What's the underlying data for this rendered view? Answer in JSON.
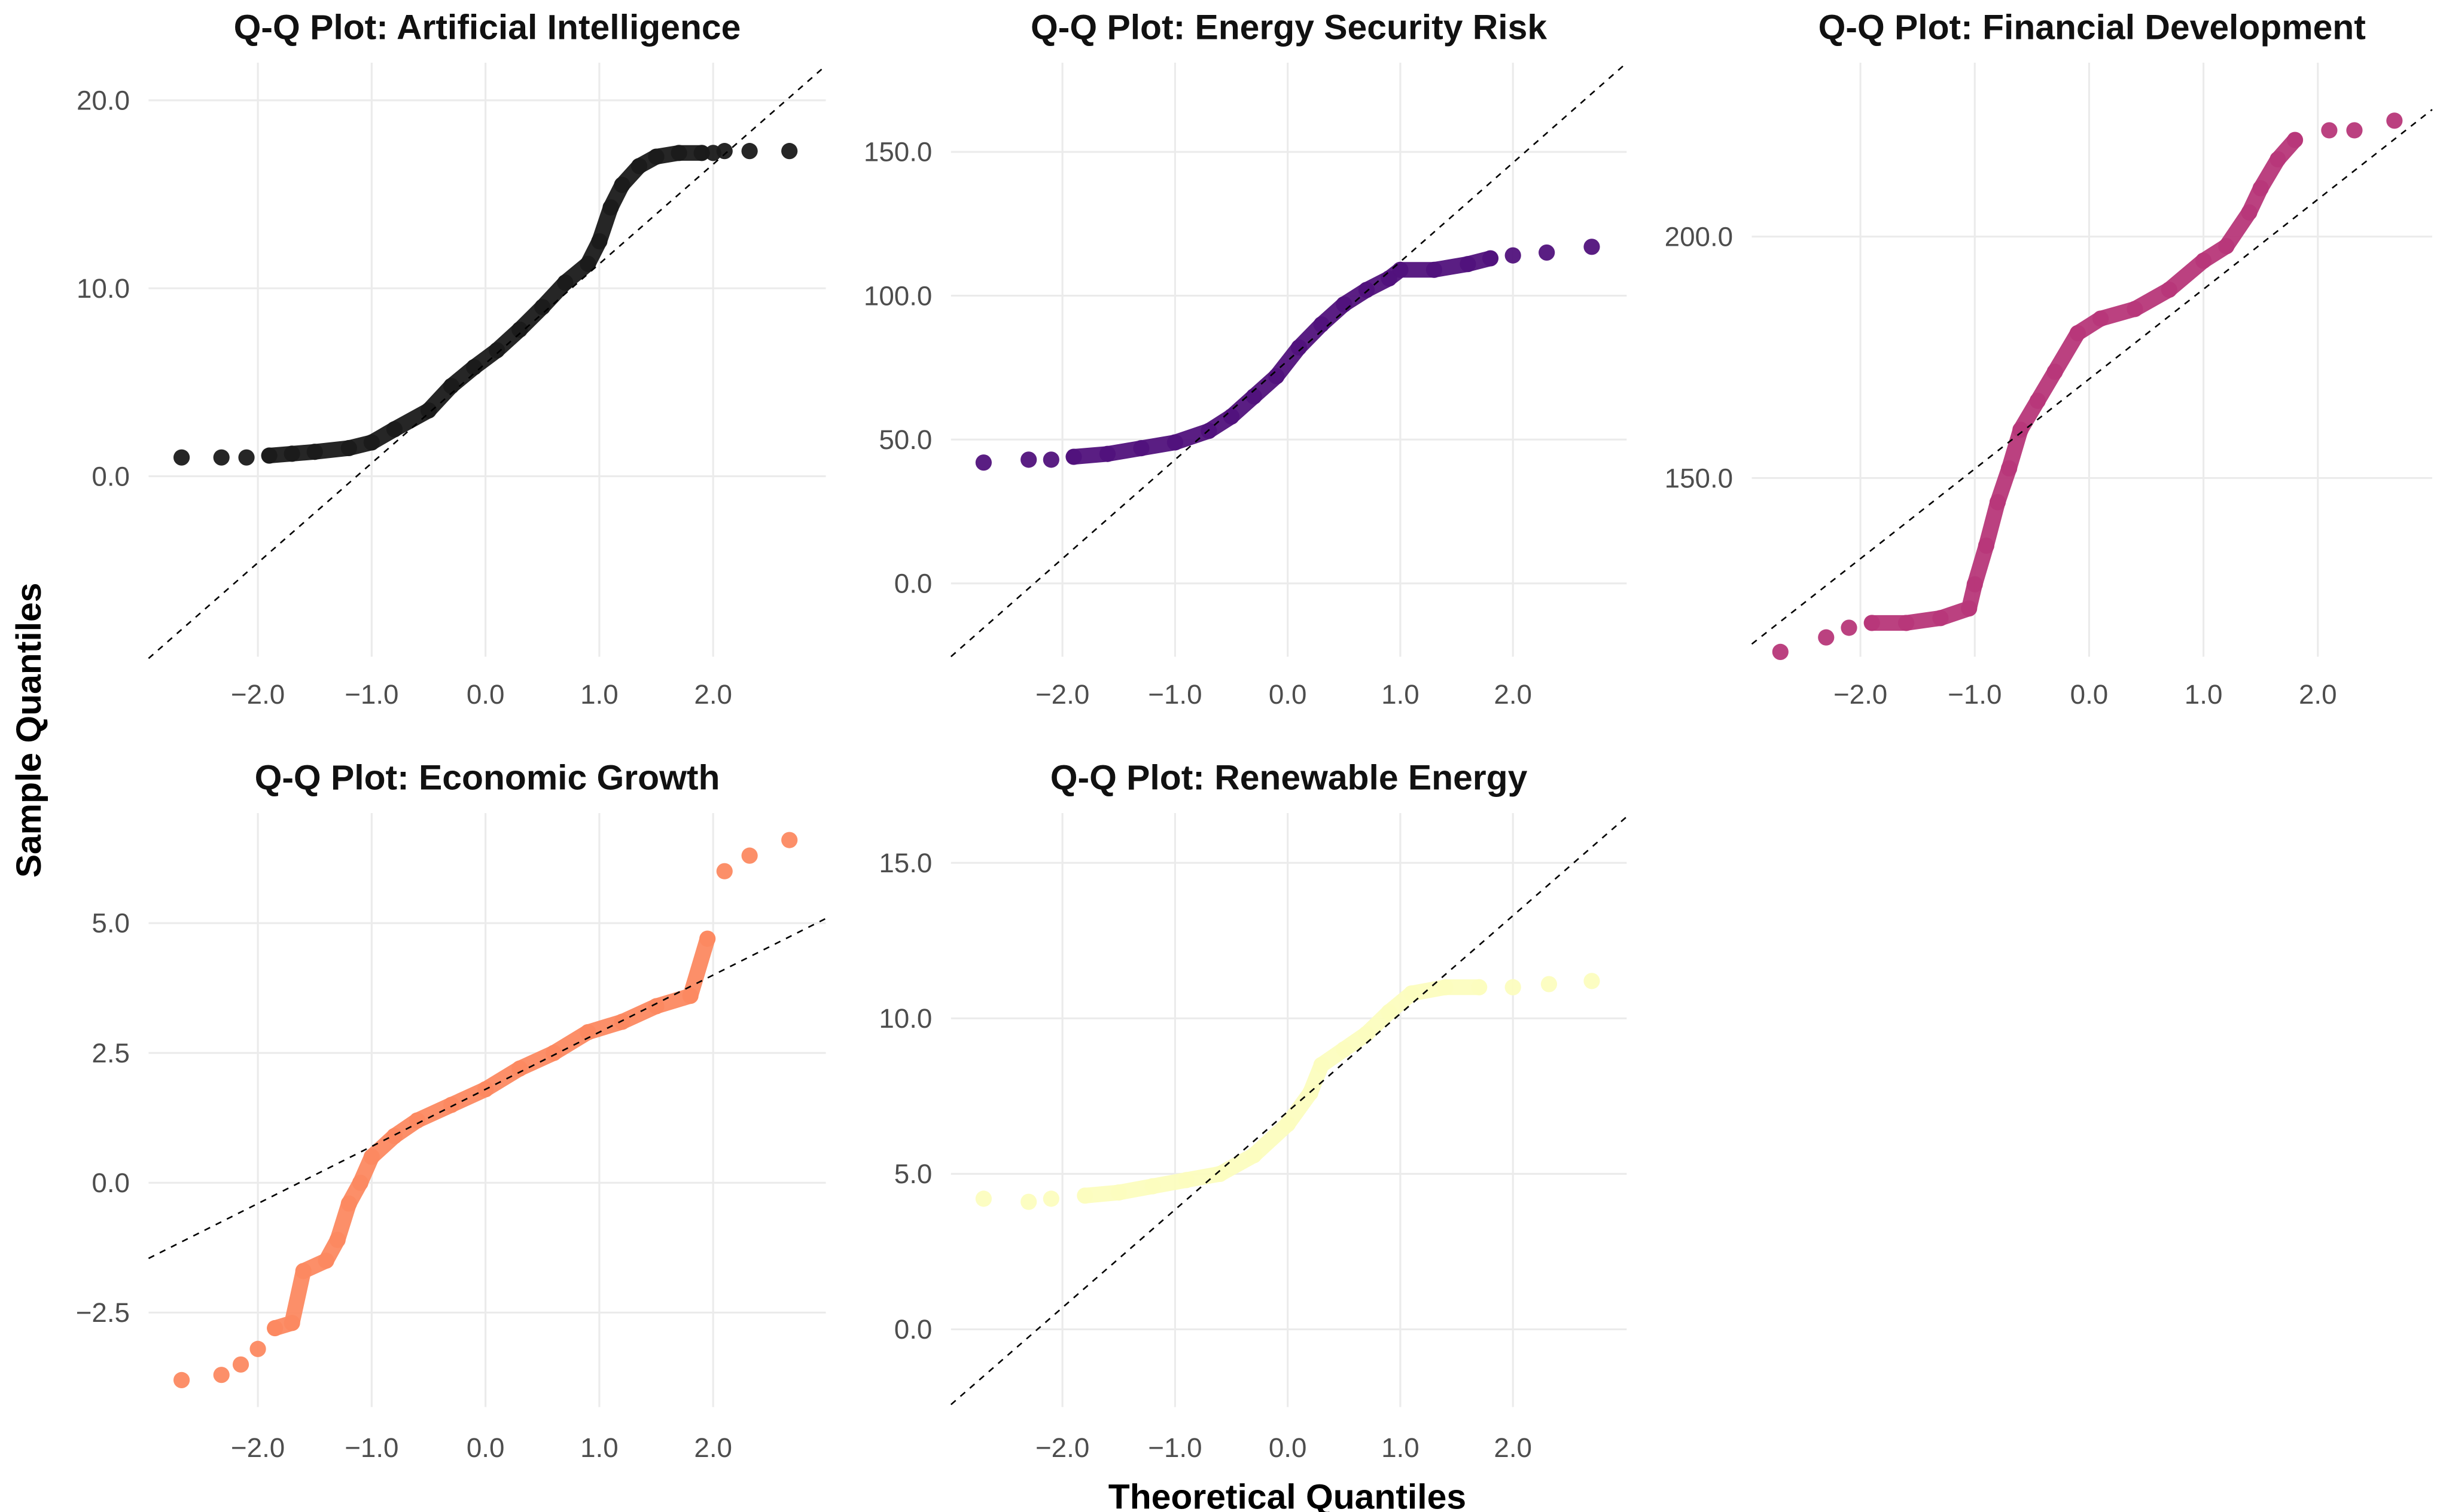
{
  "chart_data": {
    "type": "scatter",
    "xlabel": "Theoretical Quantiles",
    "ylabel": "Sample Quantiles",
    "grid": true,
    "panels": [
      {
        "title": "Q-Q Plot: Artificial Intelligence",
        "color": "#1a1a1a",
        "xlim": [
          -2.96,
          2.99
        ],
        "ylim": [
          -9.6,
          22.0
        ],
        "xticks": [
          -2,
          -1,
          0,
          1,
          2
        ],
        "xtick_labels": [
          "−2.0",
          "−1.0",
          "0.0",
          "1.0",
          "2.0"
        ],
        "yticks": [
          0,
          10,
          20
        ],
        "ytick_labels": [
          "0.0",
          "10.0",
          "20.0"
        ],
        "ref_line": {
          "intercept": 6.0,
          "slope": 5.3
        },
        "points": [
          [
            -2.67,
            1.0
          ],
          [
            -2.32,
            1.0
          ],
          [
            -2.1,
            1.0
          ],
          [
            -1.9,
            1.1
          ],
          [
            -1.7,
            1.2
          ],
          [
            -1.5,
            1.3
          ],
          [
            -1.2,
            1.5
          ],
          [
            -1.0,
            1.8
          ],
          [
            -0.8,
            2.5
          ],
          [
            -0.5,
            3.5
          ],
          [
            -0.3,
            4.8
          ],
          [
            -0.1,
            5.8
          ],
          [
            0.1,
            6.7
          ],
          [
            0.3,
            7.8
          ],
          [
            0.5,
            9.0
          ],
          [
            0.7,
            10.3
          ],
          [
            0.9,
            11.3
          ],
          [
            1.0,
            12.5
          ],
          [
            1.1,
            14.3
          ],
          [
            1.2,
            15.5
          ],
          [
            1.35,
            16.5
          ],
          [
            1.5,
            17.0
          ],
          [
            1.7,
            17.2
          ],
          [
            1.9,
            17.2
          ],
          [
            2.0,
            17.2
          ],
          [
            2.1,
            17.3
          ],
          [
            2.32,
            17.3
          ],
          [
            2.67,
            17.3
          ]
        ]
      },
      {
        "title": "Q-Q Plot: Energy Security Risk",
        "color": "#51127c",
        "xlim": [
          -2.99,
          3.01
        ],
        "ylim": [
          -25.5,
          181
        ],
        "xticks": [
          -2,
          -1,
          0,
          1,
          2
        ],
        "xtick_labels": [
          "−2.0",
          "−1.0",
          "0.0",
          "1.0",
          "2.0"
        ],
        "yticks": [
          0,
          50,
          100,
          150
        ],
        "ytick_labels": [
          "0.0",
          "50.0",
          "100.0",
          "150.0"
        ],
        "ref_line": {
          "intercept": 77.4,
          "slope": 34.4
        },
        "points": [
          [
            -2.7,
            42
          ],
          [
            -2.3,
            43
          ],
          [
            -2.1,
            43
          ],
          [
            -1.9,
            44
          ],
          [
            -1.6,
            45
          ],
          [
            -1.3,
            47
          ],
          [
            -1.0,
            49
          ],
          [
            -0.7,
            53
          ],
          [
            -0.5,
            58
          ],
          [
            -0.3,
            65
          ],
          [
            -0.1,
            72
          ],
          [
            0.1,
            82
          ],
          [
            0.3,
            90
          ],
          [
            0.5,
            97
          ],
          [
            0.7,
            102
          ],
          [
            0.9,
            106
          ],
          [
            1.0,
            109
          ],
          [
            1.3,
            109
          ],
          [
            1.6,
            111
          ],
          [
            1.8,
            113
          ],
          [
            2.0,
            114
          ],
          [
            2.3,
            115
          ],
          [
            2.7,
            117
          ]
        ]
      },
      {
        "title": "Q-Q Plot: Financial Development",
        "color": "#b73779",
        "xlim": [
          -2.95,
          3.0
        ],
        "ylim": [
          113,
          236
        ],
        "xticks": [
          -2,
          -1,
          0,
          1,
          2
        ],
        "xtick_labels": [
          "−2.0",
          "−1.0",
          "0.0",
          "1.0",
          "2.0"
        ],
        "yticks": [
          150,
          200
        ],
        "ytick_labels": [
          "150.0",
          "200.0"
        ],
        "ref_line": {
          "intercept": 170.5,
          "slope": 18.6
        },
        "points": [
          [
            -2.7,
            114
          ],
          [
            -2.3,
            117
          ],
          [
            -2.1,
            119
          ],
          [
            -1.9,
            120
          ],
          [
            -1.6,
            120
          ],
          [
            -1.3,
            121
          ],
          [
            -1.05,
            123
          ],
          [
            -1.0,
            128
          ],
          [
            -0.9,
            136
          ],
          [
            -0.8,
            145
          ],
          [
            -0.7,
            152
          ],
          [
            -0.6,
            160
          ],
          [
            -0.45,
            166
          ],
          [
            -0.3,
            172
          ],
          [
            -0.1,
            180
          ],
          [
            0.1,
            183
          ],
          [
            0.4,
            185
          ],
          [
            0.7,
            189
          ],
          [
            1.0,
            195
          ],
          [
            1.2,
            198
          ],
          [
            1.4,
            205
          ],
          [
            1.5,
            210
          ],
          [
            1.65,
            216
          ],
          [
            1.8,
            220
          ],
          [
            2.1,
            222
          ],
          [
            2.32,
            222
          ],
          [
            2.67,
            224
          ]
        ]
      },
      {
        "title": "Q-Q Plot: Economic Growth",
        "color": "#fc8961",
        "xlim": [
          -2.96,
          2.99
        ],
        "ylim": [
          -4.32,
          7.12
        ],
        "xticks": [
          -2,
          -1,
          0,
          1,
          2
        ],
        "xtick_labels": [
          "−2.0",
          "−1.0",
          "0.0",
          "1.0",
          "2.0"
        ],
        "yticks": [
          -2.5,
          0,
          2.5,
          5
        ],
        "ytick_labels": [
          "−2.5",
          "0.0",
          "2.5",
          "5.0"
        ],
        "ref_line": {
          "intercept": 1.8,
          "slope": 1.1
        },
        "points": [
          [
            -2.67,
            -3.8
          ],
          [
            -2.32,
            -3.7
          ],
          [
            -2.15,
            -3.5
          ],
          [
            -2.0,
            -3.2
          ],
          [
            -1.85,
            -2.8
          ],
          [
            -1.7,
            -2.7
          ],
          [
            -1.6,
            -1.7
          ],
          [
            -1.4,
            -1.5
          ],
          [
            -1.3,
            -1.1
          ],
          [
            -1.2,
            -0.4
          ],
          [
            -1.1,
            0.0
          ],
          [
            -1.0,
            0.5
          ],
          [
            -0.8,
            0.9
          ],
          [
            -0.6,
            1.2
          ],
          [
            -0.3,
            1.5
          ],
          [
            0.0,
            1.8
          ],
          [
            0.3,
            2.2
          ],
          [
            0.6,
            2.5
          ],
          [
            0.9,
            2.9
          ],
          [
            1.2,
            3.1
          ],
          [
            1.5,
            3.4
          ],
          [
            1.8,
            3.6
          ],
          [
            1.95,
            4.7
          ],
          [
            2.1,
            6.0
          ],
          [
            2.32,
            6.3
          ],
          [
            2.67,
            6.6
          ]
        ]
      },
      {
        "title": "Q-Q Plot: Renewable Energy",
        "color": "#fcfdbf",
        "xlim": [
          -2.99,
          3.01
        ],
        "ylim": [
          -2.5,
          16.6
        ],
        "xticks": [
          -2,
          -1,
          0,
          1,
          2
        ],
        "xtick_labels": [
          "−2.0",
          "−1.0",
          "0.0",
          "1.0",
          "2.0"
        ],
        "yticks": [
          0,
          5,
          10,
          15
        ],
        "ytick_labels": [
          "0.0",
          "5.0",
          "10.0",
          "15.0"
        ],
        "ref_line": {
          "intercept": 7.0,
          "slope": 3.15
        },
        "points": [
          [
            -2.7,
            4.2
          ],
          [
            -2.3,
            4.1
          ],
          [
            -2.1,
            4.2
          ],
          [
            -1.8,
            4.3
          ],
          [
            -1.5,
            4.4
          ],
          [
            -1.2,
            4.6
          ],
          [
            -0.9,
            4.8
          ],
          [
            -0.6,
            5.0
          ],
          [
            -0.3,
            5.6
          ],
          [
            0.0,
            6.6
          ],
          [
            0.2,
            7.6
          ],
          [
            0.3,
            8.5
          ],
          [
            0.5,
            9.0
          ],
          [
            0.7,
            9.5
          ],
          [
            0.9,
            10.2
          ],
          [
            1.1,
            10.8
          ],
          [
            1.4,
            11.0
          ],
          [
            1.7,
            11.0
          ],
          [
            2.0,
            11.0
          ],
          [
            2.32,
            11.1
          ],
          [
            2.7,
            11.2
          ]
        ]
      }
    ]
  }
}
